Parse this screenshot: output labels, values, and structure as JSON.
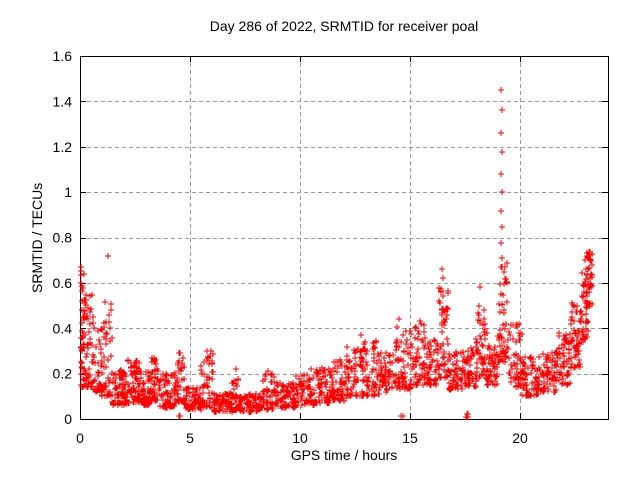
{
  "chart_data": {
    "type": "scatter",
    "title": "Day 286 of 2022, SRMTID for receiver poal",
    "xlabel": "GPS time / hours",
    "ylabel": "SRMTID / TECUs",
    "xlim": [
      0,
      24
    ],
    "ylim": [
      0,
      1.6
    ],
    "xticks": {
      "values": [
        0,
        5,
        10,
        15,
        20
      ],
      "labels": [
        "0",
        "5",
        "10",
        "15",
        "20"
      ]
    },
    "yticks": {
      "values": [
        0,
        0.2,
        0.4,
        0.6,
        0.8,
        1.0,
        1.2,
        1.4,
        1.6
      ],
      "labels": [
        "0",
        "0.2",
        "0.4",
        "0.6",
        "0.8",
        "1",
        "1.2",
        "1.4",
        "1.6"
      ]
    },
    "grid": true,
    "grid_style": "dashed",
    "legend": "none",
    "marker": "plus",
    "marker_size_px": 7,
    "colors": {
      "marker": "#ff0000",
      "grid": "#999999",
      "frame": "#000000",
      "text": "#000000",
      "background": "#ffffff"
    },
    "series_name": "SRMTID for receiver poal, day 286 of 2022",
    "points_note": "Individually readable points (x hours, y TECUs)",
    "points": [
      [
        19.15,
        1.45
      ],
      [
        19.17,
        1.36
      ],
      [
        19.14,
        1.26
      ],
      [
        19.16,
        1.175
      ],
      [
        19.15,
        1.08
      ],
      [
        19.17,
        1.0
      ],
      [
        19.14,
        0.915
      ],
      [
        19.16,
        0.845
      ],
      [
        19.15,
        0.775
      ],
      [
        19.18,
        0.71
      ],
      [
        1.25,
        0.72
      ],
      [
        0.03,
        0.67
      ],
      [
        0.05,
        0.635
      ],
      [
        0.04,
        0.6
      ],
      [
        0.07,
        0.565
      ],
      [
        16.45,
        0.66
      ],
      [
        16.48,
        0.62
      ],
      [
        16.43,
        0.575
      ],
      [
        16.5,
        0.54
      ],
      [
        18.2,
        0.58
      ],
      [
        18.15,
        0.5
      ],
      [
        22.95,
        0.7
      ],
      [
        23.05,
        0.72
      ],
      [
        23.12,
        0.735
      ],
      [
        23.2,
        0.7
      ],
      [
        23.25,
        0.68
      ],
      [
        23.1,
        0.66
      ],
      [
        4.48,
        0.012
      ],
      [
        4.54,
        0.012
      ],
      [
        14.6,
        0.012
      ],
      [
        14.68,
        0.012
      ],
      [
        17.56,
        0.008
      ],
      [
        17.58,
        0.008
      ],
      [
        17.6,
        0.008
      ],
      [
        17.62,
        0.008
      ],
      [
        17.64,
        0.008
      ],
      [
        17.57,
        0.022
      ],
      [
        17.59,
        0.022
      ],
      [
        17.61,
        0.022
      ],
      [
        17.63,
        0.022
      ],
      [
        5.78,
        0.3
      ],
      [
        5.8,
        0.275
      ],
      [
        7.1,
        0.22
      ],
      [
        12.75,
        0.37
      ],
      [
        14.5,
        0.44
      ],
      [
        15.45,
        0.43
      ],
      [
        11.55,
        0.25
      ],
      [
        10.5,
        0.22
      ],
      [
        2.2,
        0.26
      ],
      [
        3.35,
        0.27
      ],
      [
        8.55,
        0.21
      ]
    ],
    "density_bands_note": "Dense cloud envelope: [x_start, x_end, y_low, y_high, point_count, bottom_bias_exponent]",
    "density_bands": {
      "seed": 286,
      "bands": [
        [
          0.02,
          0.2,
          0.14,
          0.67,
          40,
          1.8
        ],
        [
          0.2,
          0.55,
          0.14,
          0.55,
          50,
          2.0
        ],
        [
          0.55,
          1.0,
          0.12,
          0.45,
          45,
          2.0
        ],
        [
          1.0,
          1.45,
          0.1,
          0.52,
          45,
          2.2
        ],
        [
          1.45,
          2.1,
          0.06,
          0.22,
          70,
          1.4
        ],
        [
          2.1,
          2.7,
          0.07,
          0.26,
          65,
          1.5
        ],
        [
          2.7,
          3.2,
          0.06,
          0.22,
          55,
          1.4
        ],
        [
          3.2,
          3.6,
          0.08,
          0.28,
          45,
          1.6
        ],
        [
          3.6,
          4.3,
          0.05,
          0.2,
          60,
          1.4
        ],
        [
          4.3,
          4.8,
          0.07,
          0.31,
          50,
          1.7
        ],
        [
          4.8,
          5.5,
          0.04,
          0.14,
          60,
          1.3
        ],
        [
          5.5,
          6.1,
          0.05,
          0.3,
          50,
          1.9
        ],
        [
          6.1,
          6.9,
          0.03,
          0.12,
          65,
          1.2
        ],
        [
          6.9,
          7.3,
          0.04,
          0.2,
          40,
          1.8
        ],
        [
          7.3,
          8.3,
          0.03,
          0.11,
          75,
          1.2
        ],
        [
          8.3,
          8.9,
          0.04,
          0.2,
          50,
          1.6
        ],
        [
          8.9,
          9.8,
          0.05,
          0.16,
          70,
          1.4
        ],
        [
          9.8,
          10.7,
          0.06,
          0.2,
          70,
          1.5
        ],
        [
          10.7,
          11.4,
          0.07,
          0.23,
          60,
          1.5
        ],
        [
          11.4,
          12.1,
          0.08,
          0.26,
          60,
          1.5
        ],
        [
          12.1,
          12.9,
          0.1,
          0.33,
          65,
          1.6
        ],
        [
          12.9,
          13.6,
          0.1,
          0.35,
          60,
          1.6
        ],
        [
          13.6,
          14.35,
          0.12,
          0.3,
          60,
          1.4
        ],
        [
          14.35,
          15.0,
          0.13,
          0.42,
          55,
          1.7
        ],
        [
          15.0,
          15.7,
          0.15,
          0.42,
          60,
          1.6
        ],
        [
          15.7,
          16.3,
          0.15,
          0.35,
          55,
          1.4
        ],
        [
          16.3,
          16.75,
          0.18,
          0.62,
          50,
          2.0
        ],
        [
          16.75,
          17.5,
          0.13,
          0.3,
          60,
          1.4
        ],
        [
          17.5,
          18.0,
          0.14,
          0.33,
          45,
          1.5
        ],
        [
          18.0,
          18.5,
          0.18,
          0.48,
          50,
          1.7
        ],
        [
          18.5,
          19.0,
          0.15,
          0.33,
          50,
          1.4
        ],
        [
          19.0,
          19.45,
          0.25,
          0.7,
          55,
          1.7
        ],
        [
          19.45,
          20.1,
          0.14,
          0.42,
          55,
          1.6
        ],
        [
          20.1,
          20.9,
          0.1,
          0.28,
          70,
          1.5
        ],
        [
          20.9,
          21.7,
          0.12,
          0.3,
          65,
          1.4
        ],
        [
          21.7,
          22.3,
          0.15,
          0.38,
          55,
          1.4
        ],
        [
          22.3,
          22.75,
          0.22,
          0.52,
          50,
          1.3
        ],
        [
          22.75,
          23.1,
          0.33,
          0.65,
          45,
          1.1
        ],
        [
          23.0,
          23.3,
          0.48,
          0.74,
          35,
          1.0
        ]
      ]
    }
  }
}
